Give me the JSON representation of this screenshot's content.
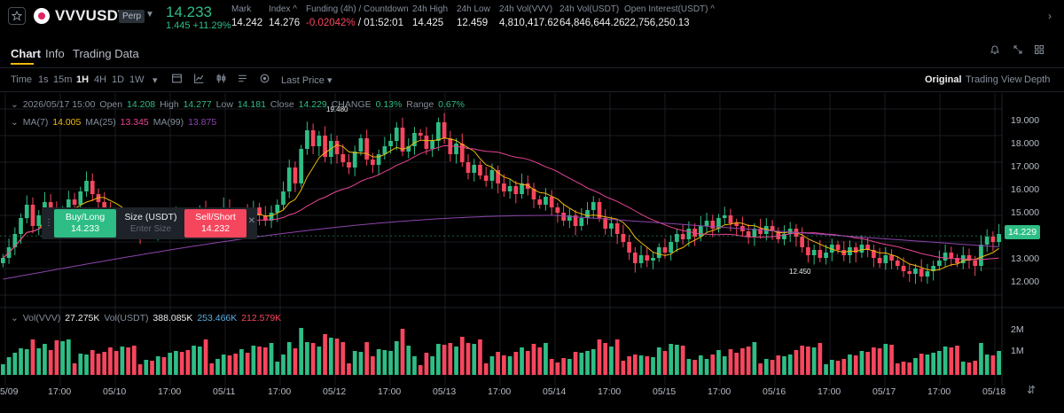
{
  "ticker": {
    "symbol": "VVVUSDT",
    "contract_type": "Perp",
    "last_price": "14.233",
    "change": "1.445 +11.29%",
    "stats": [
      {
        "label": "Mark",
        "value": "14.242"
      },
      {
        "label": "Index ^",
        "value": "14.276"
      },
      {
        "label": "Funding (4h) / Countdown",
        "value_red": "-0.02042%",
        "value_rest": " / 01:52:01"
      },
      {
        "label": "24h High",
        "value": "14.425"
      },
      {
        "label": "24h Low",
        "value": "12.459"
      },
      {
        "label": "24h Vol(VVV)",
        "value": "4,810,417.62"
      },
      {
        "label": "24h Vol(USDT)",
        "value": "64,846,644.26"
      },
      {
        "label": "Open Interest(USDT) ^",
        "value": "22,756,250.13"
      }
    ]
  },
  "tabs": [
    "Chart",
    "Info",
    "Trading Data"
  ],
  "toolbar": {
    "intervals": [
      "Time",
      "1s",
      "15m",
      "1H",
      "4H",
      "1D",
      "1W"
    ],
    "selected_interval": "1H",
    "price_type": "Last Price",
    "views": [
      "Original",
      "Trading View",
      "Depth"
    ],
    "selected_view": "Original"
  },
  "legend": {
    "ohlc_date": "2026/05/17 15:00",
    "open_label": "Open",
    "open": "14.208",
    "high_label": "High",
    "high": "14.277",
    "low_label": "Low",
    "low": "14.181",
    "close_label": "Close",
    "close": "14.229",
    "change_label": "CHANGE",
    "change": "0.13%",
    "range_label": "Range",
    "range": "0.67%",
    "ma7_label": "MA(7)",
    "ma7": "14.005",
    "ma25_label": "MA(25)",
    "ma25": "13.345",
    "ma99_label": "MA(99)",
    "ma99": "13.875",
    "vol_label": "Vol(VVV)",
    "vol": "27.275K",
    "volusdt_label": "Vol(USDT)",
    "volusdt": "388.085K",
    "volusdt_a": "253.466K",
    "volusdt_b": "212.579K"
  },
  "order": {
    "buy_label": "Buy/Long",
    "buy_price": "14.233",
    "size_label": "Size (USDT)",
    "size_placeholder": "Enter Size",
    "sell_label": "Sell/Short",
    "sell_price": "14.232"
  },
  "annotations": {
    "high_mark": "19.480",
    "low_mark": "12.450"
  },
  "current_price_tag": "14.229",
  "price_axis": [
    "19.000",
    "18.000",
    "17.000",
    "16.000",
    "15.000",
    "14.000",
    "13.000",
    "12.000"
  ],
  "volume_axis": [
    "2M",
    "1M"
  ],
  "time_axis": [
    "5/09",
    "17:00",
    "05/10",
    "17:00",
    "05/11",
    "17:00",
    "05/12",
    "17:00",
    "05/13",
    "17:00",
    "05/14",
    "17:00",
    "05/15",
    "17:00",
    "05/16",
    "17:00",
    "05/17",
    "17:00",
    "05/18"
  ],
  "colors": {
    "up": "#2ebd85",
    "down": "#f6465d",
    "ma7": "#f0b90b",
    "ma25": "#e84393",
    "ma99": "#8e44ad"
  },
  "chart_data": {
    "type": "candlestick",
    "interval": "1H",
    "y_range": [
      11.6,
      19.6
    ],
    "close_series": [
      13.4,
      13.8,
      14.3,
      14.9,
      15.4,
      14.6,
      15.0,
      15.5,
      15.3,
      14.8,
      15.2,
      15.6,
      15.4,
      15.9,
      16.3,
      15.8,
      15.5,
      15.2,
      14.8,
      14.6,
      14.9,
      14.7,
      14.5,
      14.3,
      14.6,
      14.4,
      14.7,
      14.5,
      14.8,
      15.1,
      14.9,
      14.7,
      15.0,
      15.2,
      14.8,
      14.6,
      14.9,
      15.3,
      15.0,
      14.7,
      15.1,
      14.9,
      15.3,
      15.0,
      14.8,
      15.1,
      15.4,
      15.9,
      16.8,
      16.2,
      17.5,
      18.2,
      17.6,
      18.0,
      17.2,
      17.8,
      17.3,
      17.0,
      16.8,
      17.4,
      17.9,
      17.1,
      16.9,
      17.3,
      17.6,
      17.8,
      18.3,
      17.4,
      17.6,
      18.1,
      18.0,
      17.5,
      17.8,
      18.5,
      17.9,
      17.3,
      17.7,
      17.0,
      16.6,
      16.9,
      16.5,
      16.3,
      16.7,
      16.2,
      15.9,
      16.1,
      15.8,
      16.2,
      16.0,
      15.6,
      15.4,
      15.7,
      15.3,
      15.1,
      14.8,
      15.0,
      14.6,
      14.9,
      15.2,
      15.5,
      14.9,
      14.5,
      14.7,
      14.3,
      14.0,
      13.6,
      13.2,
      13.5,
      13.3,
      13.4,
      13.8,
      13.6,
      14.0,
      14.3,
      14.1,
      14.5,
      14.2,
      14.6,
      14.8,
      14.5,
      14.9,
      15.0,
      14.7,
      14.6,
      14.4,
      14.2,
      14.5,
      14.3,
      14.6,
      14.4,
      14.1,
      14.3,
      14.5,
      14.2,
      13.8,
      13.5,
      13.7,
      13.4,
      13.6,
      13.9,
      13.7,
      13.5,
      13.8,
      13.6,
      13.9,
      13.7,
      13.4,
      13.2,
      13.5,
      13.3,
      13.1,
      12.9,
      12.8,
      13.0,
      12.7,
      12.9,
      13.1,
      13.3,
      13.6,
      13.4,
      13.2,
      13.5,
      13.3,
      13.1,
      13.9,
      14.2,
      14.0,
      14.3
    ]
  }
}
